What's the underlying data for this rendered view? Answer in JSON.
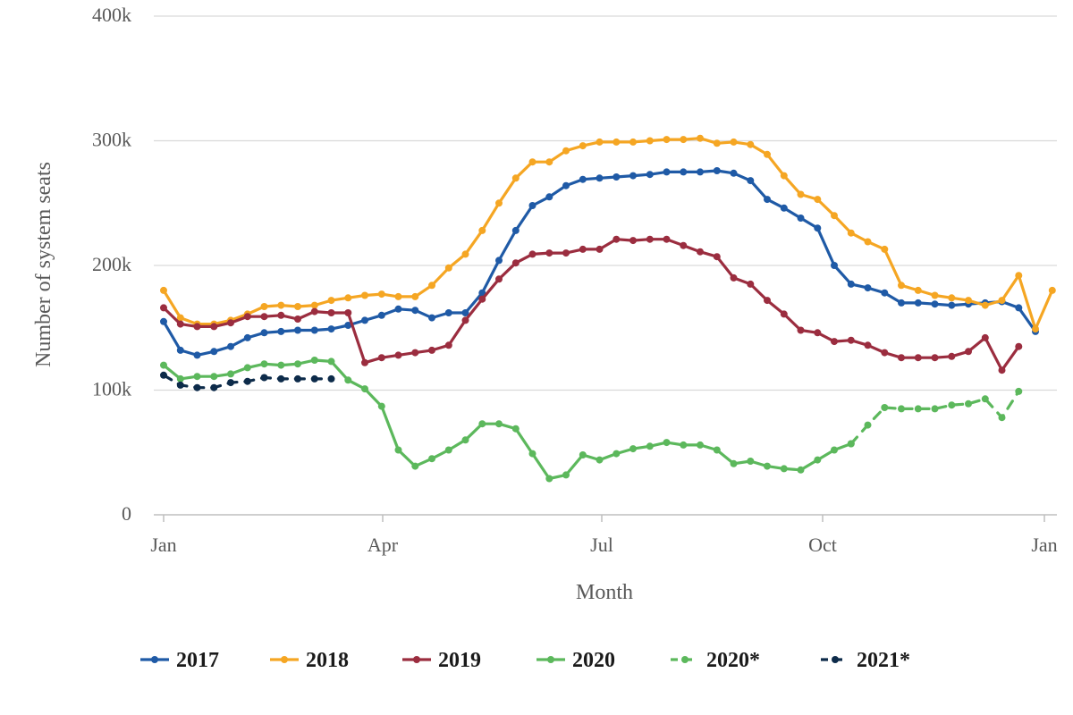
{
  "chart_data": {
    "type": "line",
    "xlabel": "Month",
    "ylabel": "Number of system seats",
    "x_ticks": [
      "Jan",
      "Apr",
      "Jul",
      "Oct",
      "Jan"
    ],
    "y_ticks": [
      "0",
      "100k",
      "200k",
      "300k",
      "400k"
    ],
    "ylim": [
      0,
      400000
    ],
    "grid": "horizontal",
    "legend_position": "bottom",
    "series": [
      {
        "name": "2017",
        "color": "#1f5aa6",
        "dash": "solid",
        "points": [
          [
            0,
            155000
          ],
          [
            1,
            132000
          ],
          [
            2,
            128000
          ],
          [
            3,
            131000
          ],
          [
            4,
            135000
          ],
          [
            5,
            142000
          ],
          [
            6,
            146000
          ],
          [
            7,
            147000
          ],
          [
            8,
            148000
          ],
          [
            9,
            148000
          ],
          [
            10,
            149000
          ],
          [
            11,
            152000
          ],
          [
            12,
            156000
          ],
          [
            13,
            160000
          ],
          [
            14,
            165000
          ],
          [
            15,
            164000
          ],
          [
            16,
            158000
          ],
          [
            17,
            162000
          ],
          [
            18,
            162000
          ],
          [
            19,
            178000
          ],
          [
            20,
            204000
          ],
          [
            21,
            228000
          ],
          [
            22,
            248000
          ],
          [
            23,
            255000
          ],
          [
            24,
            264000
          ],
          [
            25,
            269000
          ],
          [
            26,
            270000
          ],
          [
            27,
            271000
          ],
          [
            28,
            272000
          ],
          [
            29,
            273000
          ],
          [
            30,
            275000
          ],
          [
            31,
            275000
          ],
          [
            32,
            275000
          ],
          [
            33,
            276000
          ],
          [
            34,
            274000
          ],
          [
            35,
            268000
          ],
          [
            36,
            253000
          ],
          [
            37,
            246000
          ],
          [
            38,
            238000
          ],
          [
            39,
            230000
          ],
          [
            40,
            200000
          ],
          [
            41,
            185000
          ],
          [
            42,
            182000
          ],
          [
            43,
            178000
          ],
          [
            44,
            170000
          ],
          [
            45,
            170000
          ],
          [
            46,
            169000
          ],
          [
            47,
            168000
          ],
          [
            48,
            169000
          ],
          [
            49,
            170000
          ],
          [
            50,
            171000
          ],
          [
            51,
            166000
          ],
          [
            52,
            147000
          ]
        ]
      },
      {
        "name": "2018",
        "color": "#f5a623",
        "dash": "solid",
        "points": [
          [
            0,
            180000
          ],
          [
            1,
            158000
          ],
          [
            2,
            153000
          ],
          [
            3,
            153000
          ],
          [
            4,
            156000
          ],
          [
            5,
            161000
          ],
          [
            6,
            167000
          ],
          [
            7,
            168000
          ],
          [
            8,
            167000
          ],
          [
            9,
            168000
          ],
          [
            10,
            172000
          ],
          [
            11,
            174000
          ],
          [
            12,
            176000
          ],
          [
            13,
            177000
          ],
          [
            14,
            175000
          ],
          [
            15,
            175000
          ],
          [
            16,
            184000
          ],
          [
            17,
            198000
          ],
          [
            18,
            209000
          ],
          [
            19,
            228000
          ],
          [
            20,
            250000
          ],
          [
            21,
            270000
          ],
          [
            22,
            283000
          ],
          [
            23,
            283000
          ],
          [
            24,
            292000
          ],
          [
            25,
            296000
          ],
          [
            26,
            299000
          ],
          [
            27,
            299000
          ],
          [
            28,
            299000
          ],
          [
            29,
            300000
          ],
          [
            30,
            301000
          ],
          [
            31,
            301000
          ],
          [
            32,
            302000
          ],
          [
            33,
            298000
          ],
          [
            34,
            299000
          ],
          [
            35,
            297000
          ],
          [
            36,
            289000
          ],
          [
            37,
            272000
          ],
          [
            38,
            257000
          ],
          [
            39,
            253000
          ],
          [
            40,
            240000
          ],
          [
            41,
            226000
          ],
          [
            42,
            219000
          ],
          [
            43,
            213000
          ],
          [
            44,
            184000
          ],
          [
            45,
            180000
          ],
          [
            46,
            176000
          ],
          [
            47,
            174000
          ],
          [
            48,
            172000
          ],
          [
            49,
            168000
          ],
          [
            50,
            172000
          ],
          [
            51,
            192000
          ],
          [
            52,
            149000
          ],
          [
            53,
            180000
          ]
        ]
      },
      {
        "name": "2019",
        "color": "#9b2d3f",
        "dash": "solid",
        "points": [
          [
            0,
            166000
          ],
          [
            1,
            153000
          ],
          [
            2,
            151000
          ],
          [
            3,
            151000
          ],
          [
            4,
            154000
          ],
          [
            5,
            159000
          ],
          [
            6,
            159000
          ],
          [
            7,
            160000
          ],
          [
            8,
            157000
          ],
          [
            9,
            163000
          ],
          [
            10,
            162000
          ],
          [
            11,
            162000
          ],
          [
            12,
            122000
          ],
          [
            13,
            126000
          ],
          [
            14,
            128000
          ],
          [
            15,
            130000
          ],
          [
            16,
            132000
          ],
          [
            17,
            136000
          ],
          [
            18,
            156000
          ],
          [
            19,
            173000
          ],
          [
            20,
            189000
          ],
          [
            21,
            202000
          ],
          [
            22,
            209000
          ],
          [
            23,
            210000
          ],
          [
            24,
            210000
          ],
          [
            25,
            213000
          ],
          [
            26,
            213000
          ],
          [
            27,
            221000
          ],
          [
            28,
            220000
          ],
          [
            29,
            221000
          ],
          [
            30,
            221000
          ],
          [
            31,
            216000
          ],
          [
            32,
            211000
          ],
          [
            33,
            207000
          ],
          [
            34,
            190000
          ],
          [
            35,
            185000
          ],
          [
            36,
            172000
          ],
          [
            37,
            161000
          ],
          [
            38,
            148000
          ],
          [
            39,
            146000
          ],
          [
            40,
            139000
          ],
          [
            41,
            140000
          ],
          [
            42,
            136000
          ],
          [
            43,
            130000
          ],
          [
            44,
            126000
          ],
          [
            45,
            126000
          ],
          [
            46,
            126000
          ],
          [
            47,
            127000
          ],
          [
            48,
            131000
          ],
          [
            49,
            142000
          ],
          [
            50,
            116000
          ],
          [
            51,
            135000
          ]
        ]
      },
      {
        "name": "2020",
        "color": "#5cb85c",
        "dash": "solid",
        "points": [
          [
            0,
            120000
          ],
          [
            1,
            109000
          ],
          [
            2,
            111000
          ],
          [
            3,
            111000
          ],
          [
            4,
            113000
          ],
          [
            5,
            118000
          ],
          [
            6,
            121000
          ],
          [
            7,
            120000
          ],
          [
            8,
            121000
          ],
          [
            9,
            124000
          ],
          [
            10,
            123000
          ],
          [
            11,
            108000
          ],
          [
            12,
            101000
          ],
          [
            13,
            87000
          ],
          [
            14,
            52000
          ],
          [
            15,
            39000
          ],
          [
            16,
            45000
          ],
          [
            17,
            52000
          ],
          [
            18,
            60000
          ],
          [
            19,
            73000
          ],
          [
            20,
            73000
          ],
          [
            21,
            69000
          ],
          [
            22,
            49000
          ],
          [
            23,
            29000
          ],
          [
            24,
            32000
          ],
          [
            25,
            48000
          ],
          [
            26,
            44000
          ],
          [
            27,
            49000
          ],
          [
            28,
            53000
          ],
          [
            29,
            55000
          ],
          [
            30,
            58000
          ],
          [
            31,
            56000
          ],
          [
            32,
            56000
          ],
          [
            33,
            52000
          ],
          [
            34,
            41000
          ],
          [
            35,
            43000
          ],
          [
            36,
            39000
          ],
          [
            37,
            37000
          ],
          [
            38,
            36000
          ],
          [
            39,
            44000
          ],
          [
            40,
            52000
          ],
          [
            41,
            57000
          ]
        ]
      },
      {
        "name": "2020*",
        "color": "#5cb85c",
        "dash": "dashed",
        "points": [
          [
            41,
            57000
          ],
          [
            42,
            72000
          ],
          [
            43,
            86000
          ],
          [
            44,
            85000
          ],
          [
            45,
            85000
          ],
          [
            46,
            85000
          ],
          [
            47,
            88000
          ],
          [
            48,
            89000
          ],
          [
            49,
            93000
          ],
          [
            50,
            78000
          ],
          [
            51,
            99000
          ]
        ]
      },
      {
        "name": "2021*",
        "color": "#0d2b4a",
        "dash": "dashed",
        "points": [
          [
            0,
            112000
          ],
          [
            1,
            104000
          ],
          [
            2,
            102000
          ],
          [
            3,
            102000
          ],
          [
            4,
            106000
          ],
          [
            5,
            107000
          ],
          [
            6,
            110000
          ],
          [
            7,
            109000
          ],
          [
            8,
            109000
          ],
          [
            9,
            109000
          ],
          [
            10,
            109000
          ]
        ]
      }
    ]
  }
}
